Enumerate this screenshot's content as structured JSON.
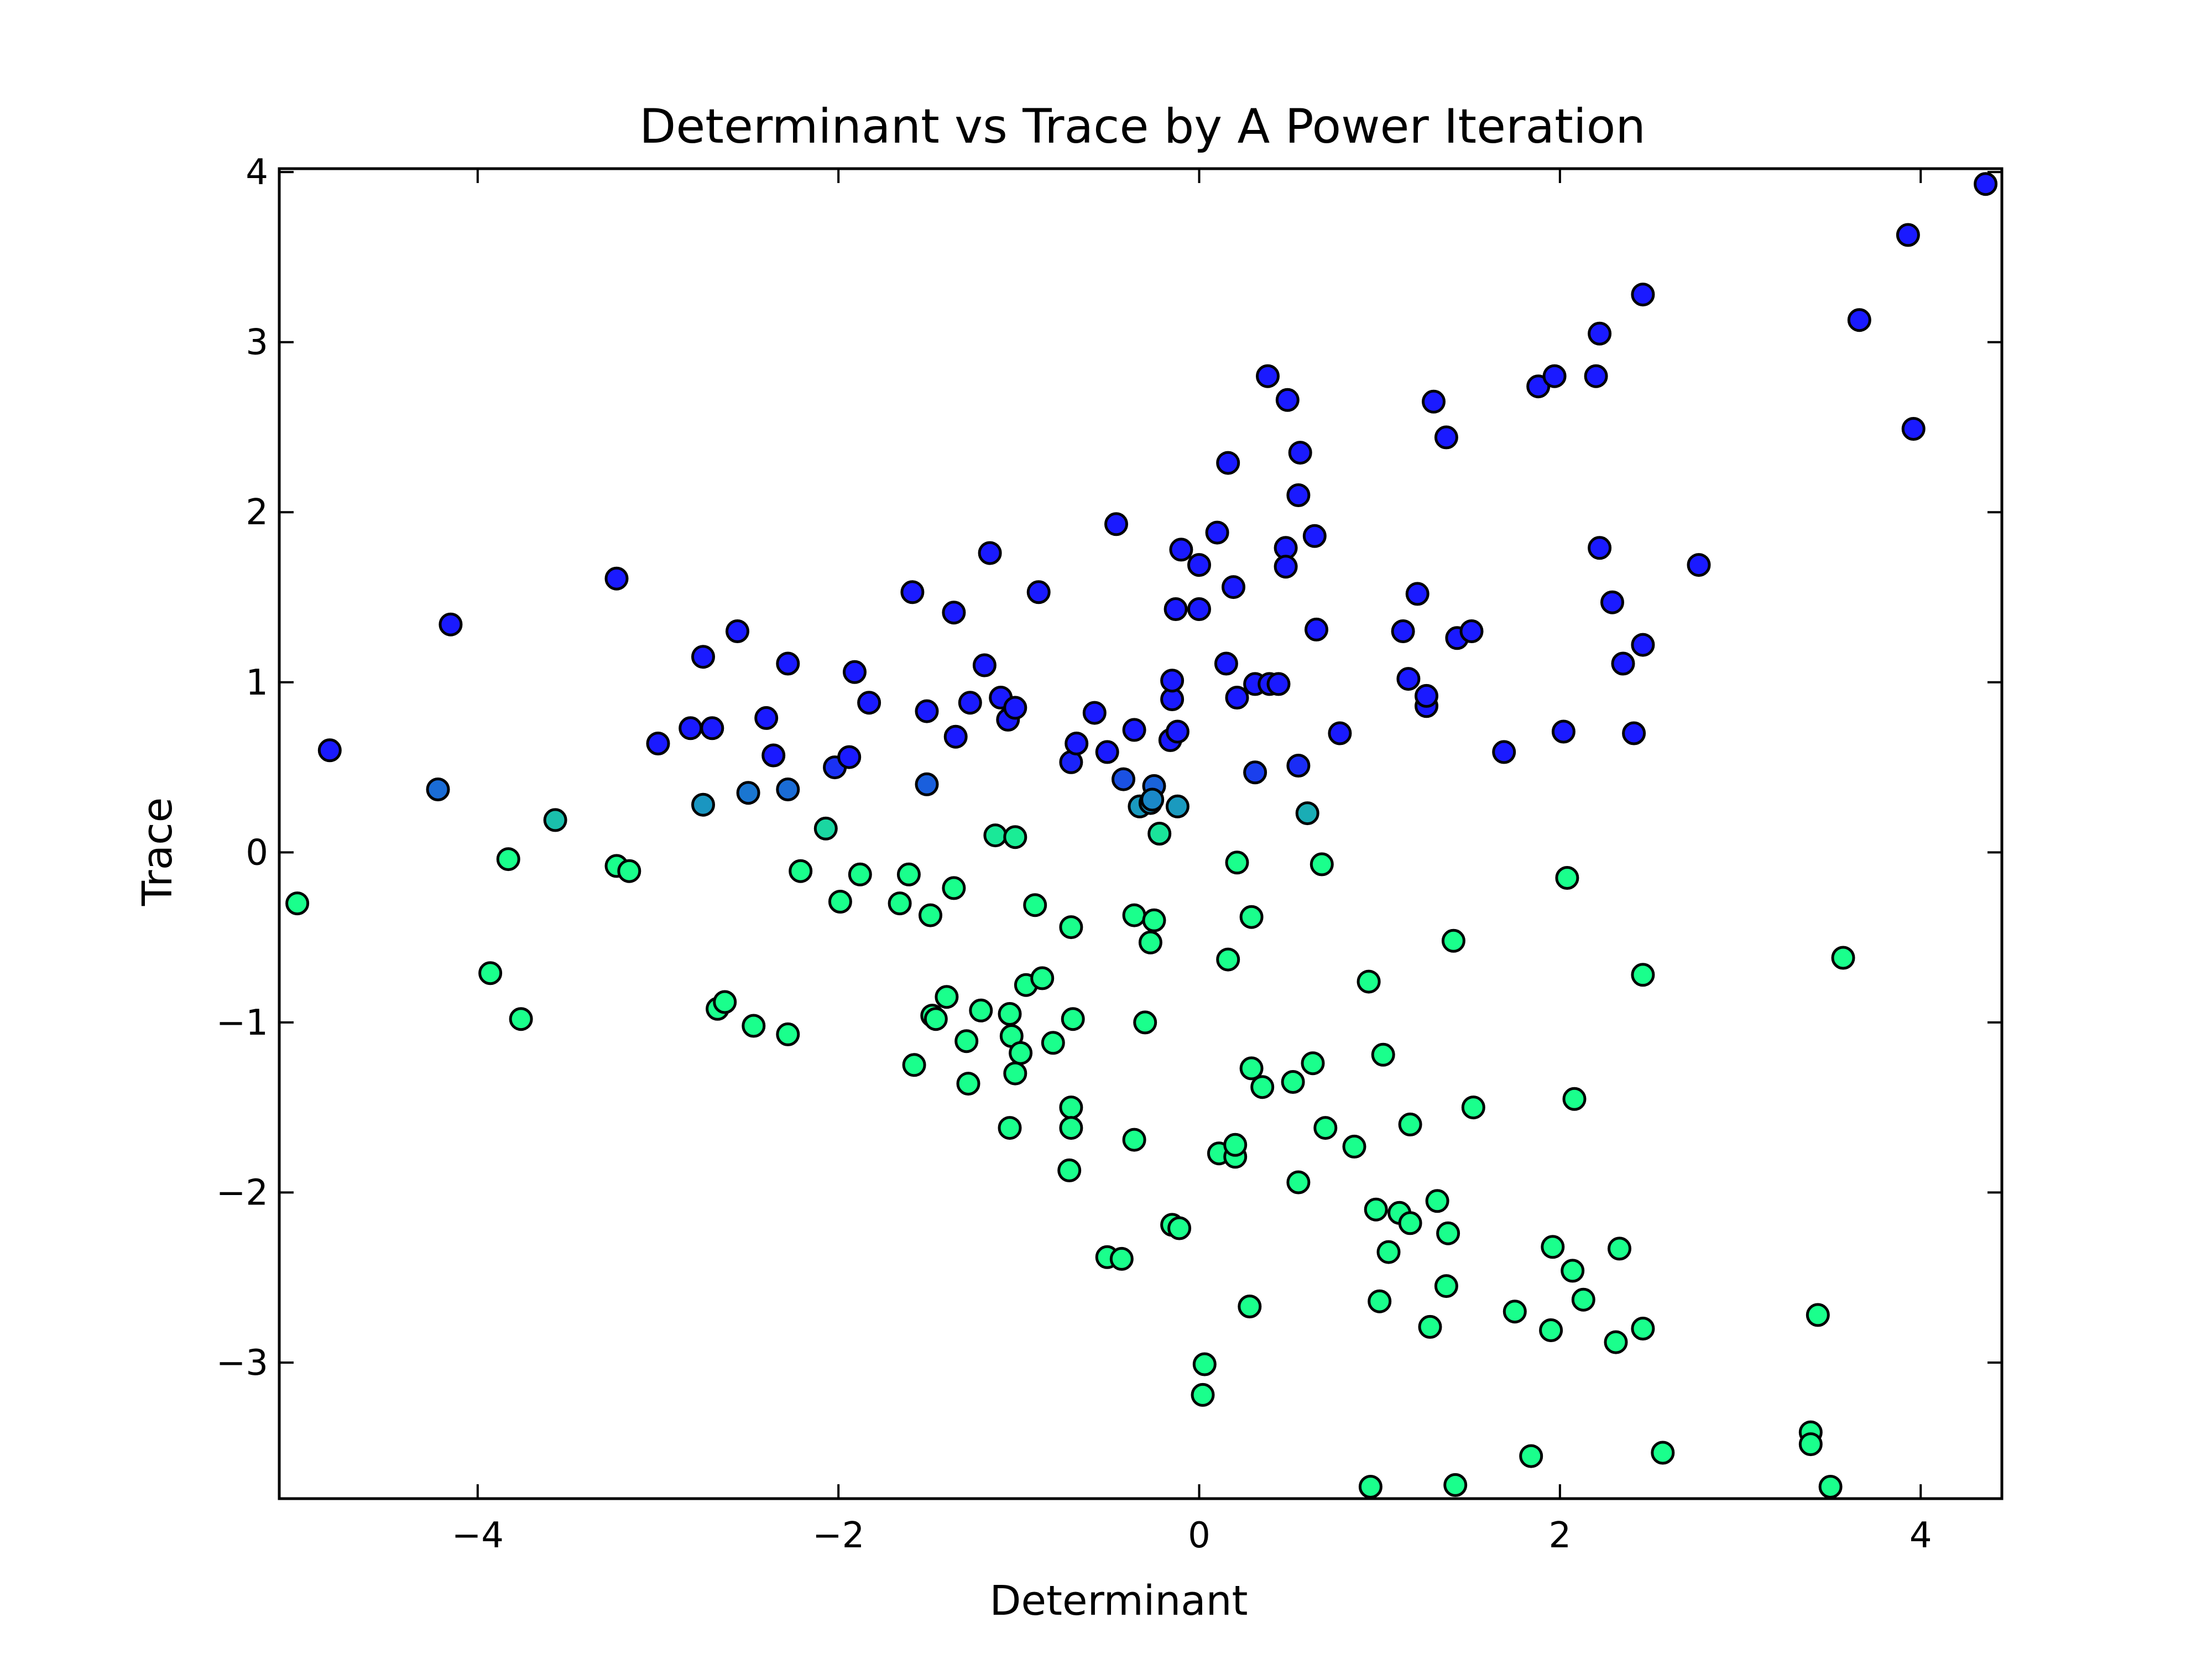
{
  "chart_data": {
    "type": "scatter",
    "title": "Determinant vs Trace by A Power Iteration",
    "xlabel": "Determinant",
    "ylabel": "Trace",
    "xlim": [
      -5.1,
      4.45
    ],
    "ylim": [
      -3.8,
      4.02
    ],
    "xticks": [
      -4,
      -2,
      0,
      2,
      4
    ],
    "yticks": [
      -3,
      -2,
      -1,
      0,
      1,
      2,
      3,
      4
    ],
    "xtick_labels": [
      "−4",
      "−2",
      "0",
      "2",
      "4"
    ],
    "ytick_labels": [
      "−3",
      "−2",
      "−1",
      "0",
      "1",
      "2",
      "3",
      "4"
    ],
    "grid": false,
    "colors": {
      "blue": "#1a1aff",
      "green": "#1aff8c",
      "edge": "#000000",
      "axes": "#000000",
      "background": "#ffffff"
    },
    "points": [
      [
        -4.82,
        0.6
      ],
      [
        -4.15,
        1.34
      ],
      [
        -4.22,
        0.37
      ],
      [
        -3.23,
        1.61
      ],
      [
        -3.0,
        0.64
      ],
      [
        -2.82,
        0.73
      ],
      [
        -2.75,
        1.15
      ],
      [
        -2.7,
        0.73
      ],
      [
        -2.56,
        1.3
      ],
      [
        -2.4,
        0.79
      ],
      [
        -2.36,
        0.57
      ],
      [
        -2.28,
        1.11
      ],
      [
        -2.28,
        0.37
      ],
      [
        -2.5,
        0.35
      ],
      [
        -2.75,
        0.28
      ],
      [
        -2.02,
        0.5
      ],
      [
        -1.94,
        0.56
      ],
      [
        -1.91,
        1.06
      ],
      [
        -1.83,
        0.88
      ],
      [
        -1.59,
        1.53
      ],
      [
        -1.51,
        0.83
      ],
      [
        -1.51,
        0.4
      ],
      [
        -1.36,
        1.41
      ],
      [
        -1.35,
        0.68
      ],
      [
        -1.27,
        0.88
      ],
      [
        -1.19,
        1.1
      ],
      [
        -1.16,
        1.76
      ],
      [
        -1.1,
        0.91
      ],
      [
        -1.06,
        0.78
      ],
      [
        -1.02,
        0.85
      ],
      [
        -0.89,
        1.53
      ],
      [
        -0.71,
        0.53
      ],
      [
        -0.68,
        0.64
      ],
      [
        -0.58,
        0.82
      ],
      [
        -0.51,
        0.59
      ],
      [
        -0.46,
        1.93
      ],
      [
        -0.42,
        0.43
      ],
      [
        -0.36,
        0.72
      ],
      [
        -0.33,
        0.27
      ],
      [
        -0.27,
        0.29
      ],
      [
        -0.25,
        0.39
      ],
      [
        -0.26,
        0.31
      ],
      [
        -0.22,
        0.11
      ],
      [
        -0.16,
        0.66
      ],
      [
        -0.15,
        0.9
      ],
      [
        -0.15,
        1.01
      ],
      [
        -0.13,
        1.43
      ],
      [
        -0.1,
        1.78
      ],
      [
        -0.12,
        0.71
      ],
      [
        -0.12,
        0.27
      ],
      [
        0.0,
        1.69
      ],
      [
        0.0,
        1.43
      ],
      [
        0.1,
        1.88
      ],
      [
        0.16,
        2.29
      ],
      [
        0.15,
        1.11
      ],
      [
        0.19,
        1.56
      ],
      [
        0.38,
        2.8
      ],
      [
        0.49,
        2.66
      ],
      [
        0.48,
        1.79
      ],
      [
        0.48,
        1.68
      ],
      [
        0.55,
        2.1
      ],
      [
        0.56,
        2.35
      ],
      [
        0.64,
        1.86
      ],
      [
        1.3,
        2.65
      ],
      [
        1.37,
        2.44
      ],
      [
        2.22,
        3.05
      ],
      [
        2.46,
        3.28
      ],
      [
        -5.0,
        -0.3
      ],
      [
        -3.57,
        0.19
      ],
      [
        -3.83,
        -0.04
      ],
      [
        -3.93,
        -0.71
      ],
      [
        -3.76,
        -0.98
      ],
      [
        -3.23,
        -0.08
      ],
      [
        -3.16,
        -0.11
      ],
      [
        -2.67,
        -0.92
      ],
      [
        -2.63,
        -0.88
      ],
      [
        -2.47,
        -1.02
      ],
      [
        -2.28,
        -1.07
      ],
      [
        -2.21,
        -0.11
      ],
      [
        -2.07,
        0.14
      ],
      [
        -1.99,
        -0.29
      ],
      [
        -1.88,
        -0.13
      ],
      [
        -1.66,
        -0.3
      ],
      [
        -1.61,
        -0.13
      ],
      [
        -1.58,
        -1.25
      ],
      [
        -1.49,
        -0.37
      ],
      [
        -1.48,
        -0.96
      ],
      [
        -1.46,
        -0.98
      ],
      [
        -1.4,
        -0.85
      ],
      [
        -1.36,
        -0.21
      ],
      [
        -1.29,
        -1.11
      ],
      [
        -1.28,
        -1.36
      ],
      [
        -1.21,
        -0.93
      ],
      [
        -1.13,
        0.1
      ],
      [
        -1.05,
        -1.62
      ],
      [
        -1.05,
        -0.95
      ],
      [
        -1.04,
        -1.08
      ],
      [
        -1.02,
        0.09
      ],
      [
        -1.02,
        -1.3
      ],
      [
        -0.99,
        -1.18
      ],
      [
        -0.96,
        -0.78
      ],
      [
        -0.87,
        -0.74
      ],
      [
        -0.81,
        -1.12
      ],
      [
        -0.91,
        -0.31
      ],
      [
        -0.71,
        -0.44
      ],
      [
        -0.7,
        -0.98
      ],
      [
        -0.71,
        -1.5
      ],
      [
        -0.71,
        -1.62
      ],
      [
        -0.72,
        -1.87
      ],
      [
        -0.51,
        -2.38
      ],
      [
        -0.43,
        -2.39
      ],
      [
        -0.36,
        -0.37
      ],
      [
        -0.36,
        -1.69
      ],
      [
        -0.3,
        -1.0
      ],
      [
        -0.27,
        -0.53
      ],
      [
        -0.25,
        -0.4
      ],
      [
        -0.15,
        -2.19
      ],
      [
        -0.11,
        -2.21
      ],
      [
        0.03,
        -3.01
      ],
      [
        0.02,
        -3.19
      ],
      [
        0.11,
        -1.77
      ],
      [
        0.16,
        -0.63
      ],
      [
        0.2,
        -1.79
      ],
      [
        0.2,
        -1.72
      ],
      [
        0.21,
        -0.06
      ],
      [
        0.21,
        0.91
      ],
      [
        0.28,
        -2.67
      ],
      [
        0.29,
        -0.38
      ],
      [
        0.29,
        -1.27
      ],
      [
        0.31,
        0.47
      ],
      [
        0.31,
        0.99
      ],
      [
        0.35,
        -1.38
      ],
      [
        0.39,
        0.99
      ],
      [
        0.44,
        0.99
      ],
      [
        0.52,
        -1.35
      ],
      [
        0.55,
        -1.94
      ],
      [
        0.55,
        0.51
      ],
      [
        0.6,
        0.23
      ],
      [
        0.63,
        -1.24
      ],
      [
        0.65,
        1.31
      ],
      [
        0.68,
        -0.07
      ],
      [
        0.7,
        -1.62
      ],
      [
        0.78,
        0.7
      ],
      [
        0.86,
        -1.73
      ],
      [
        0.94,
        -0.76
      ],
      [
        0.95,
        -3.73
      ],
      [
        0.98,
        -2.1
      ],
      [
        1.0,
        -2.64
      ],
      [
        1.02,
        -1.19
      ],
      [
        1.05,
        -2.35
      ],
      [
        1.11,
        -2.12
      ],
      [
        1.13,
        1.3
      ],
      [
        1.16,
        1.02
      ],
      [
        1.17,
        -1.6
      ],
      [
        1.17,
        -2.18
      ],
      [
        1.21,
        1.52
      ],
      [
        1.26,
        0.86
      ],
      [
        1.26,
        0.92
      ],
      [
        1.28,
        -2.79
      ],
      [
        1.32,
        -2.05
      ],
      [
        1.37,
        -2.55
      ],
      [
        1.38,
        -2.24
      ],
      [
        1.41,
        -0.52
      ],
      [
        1.42,
        -3.72
      ],
      [
        1.43,
        1.26
      ],
      [
        1.51,
        1.3
      ],
      [
        1.52,
        -1.5
      ],
      [
        1.69,
        0.59
      ],
      [
        1.75,
        -2.7
      ],
      [
        1.84,
        -3.55
      ],
      [
        1.88,
        2.74
      ],
      [
        1.95,
        -2.81
      ],
      [
        1.96,
        -2.32
      ],
      [
        1.97,
        2.8
      ],
      [
        2.02,
        0.71
      ],
      [
        2.04,
        -0.15
      ],
      [
        2.07,
        -2.46
      ],
      [
        2.08,
        -1.45
      ],
      [
        2.13,
        -2.63
      ],
      [
        2.2,
        2.8
      ],
      [
        2.22,
        1.79
      ],
      [
        2.29,
        1.47
      ],
      [
        2.31,
        -2.88
      ],
      [
        2.33,
        -2.33
      ],
      [
        2.35,
        1.11
      ],
      [
        2.41,
        0.7
      ],
      [
        2.46,
        -0.72
      ],
      [
        2.46,
        1.22
      ],
      [
        2.46,
        -2.8
      ],
      [
        2.57,
        -3.53
      ],
      [
        2.77,
        1.69
      ],
      [
        3.39,
        -3.41
      ],
      [
        3.39,
        -3.48
      ],
      [
        3.43,
        -2.72
      ],
      [
        3.5,
        -3.73
      ],
      [
        3.57,
        -0.62
      ],
      [
        3.66,
        3.13
      ],
      [
        3.93,
        3.63
      ],
      [
        3.96,
        2.49
      ],
      [
        4.36,
        3.93
      ]
    ]
  }
}
